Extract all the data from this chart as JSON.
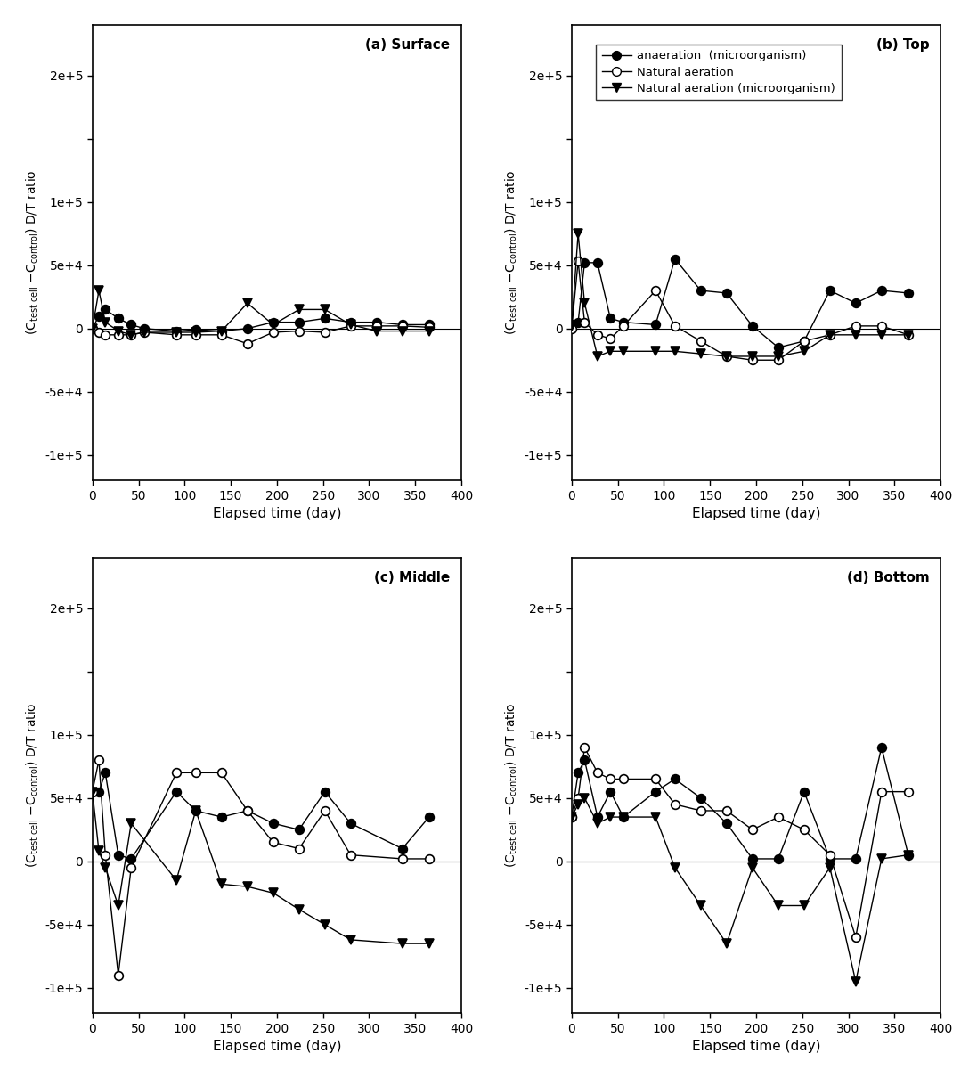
{
  "panels": [
    {
      "label": "(a) Surface",
      "series": [
        {
          "name": "anaeration (microorganism)",
          "x": [
            0,
            7,
            14,
            28,
            42,
            56,
            91,
            112,
            140,
            168,
            196,
            224,
            252,
            280,
            308,
            336,
            365
          ],
          "y": [
            0,
            10000,
            15000,
            8000,
            3000,
            0,
            -2000,
            -1000,
            -2000,
            0,
            5000,
            5000,
            8000,
            5000,
            5000,
            3000,
            3000
          ],
          "marker": "o",
          "fillstyle": "full"
        },
        {
          "name": "Natural aeration",
          "x": [
            0,
            7,
            14,
            28,
            42,
            56,
            91,
            112,
            140,
            168,
            196,
            224,
            252,
            280,
            308,
            336,
            365
          ],
          "y": [
            0,
            -3000,
            -5000,
            -5000,
            -5000,
            -3000,
            -5000,
            -5000,
            -5000,
            -12000,
            -3000,
            -2000,
            -3000,
            2000,
            2000,
            2000,
            1000
          ],
          "marker": "o",
          "fillstyle": "none"
        },
        {
          "name": "Natural aeration (microorganism)",
          "x": [
            0,
            7,
            14,
            28,
            42,
            56,
            91,
            112,
            140,
            168,
            196,
            224,
            252,
            280,
            308,
            336,
            365
          ],
          "y": [
            0,
            30000,
            5000,
            -2000,
            -5000,
            -3000,
            -3000,
            -3000,
            -2000,
            20000,
            3000,
            15000,
            15000,
            3000,
            -2000,
            -2000,
            -2000
          ],
          "marker": "v",
          "fillstyle": "full"
        }
      ],
      "show_legend": false
    },
    {
      "label": "(b) Top",
      "series": [
        {
          "name": "anaeration  (microorganism)",
          "x": [
            0,
            7,
            14,
            28,
            42,
            56,
            91,
            112,
            140,
            168,
            196,
            224,
            252,
            280,
            308,
            336,
            365
          ],
          "y": [
            3000,
            5000,
            52000,
            52000,
            8000,
            5000,
            3000,
            55000,
            30000,
            28000,
            2000,
            -15000,
            -10000,
            30000,
            20000,
            30000,
            28000
          ],
          "marker": "o",
          "fillstyle": "full"
        },
        {
          "name": "Natural aeration",
          "x": [
            0,
            7,
            14,
            28,
            42,
            56,
            91,
            112,
            140,
            168,
            196,
            224,
            252,
            280,
            308,
            336,
            365
          ],
          "y": [
            0,
            53000,
            5000,
            -5000,
            -8000,
            2000,
            30000,
            2000,
            -10000,
            -22000,
            -25000,
            -25000,
            -10000,
            -5000,
            2000,
            2000,
            -5000
          ],
          "marker": "o",
          "fillstyle": "none"
        },
        {
          "name": "Natural aeration (microorganism)",
          "x": [
            0,
            7,
            14,
            28,
            42,
            56,
            91,
            112,
            140,
            168,
            196,
            224,
            252,
            280,
            308,
            336,
            365
          ],
          "y": [
            2000,
            75000,
            20000,
            -22000,
            -18000,
            -18000,
            -18000,
            -18000,
            -20000,
            -22000,
            -22000,
            -22000,
            -18000,
            -5000,
            -5000,
            -5000,
            -5000
          ],
          "marker": "v",
          "fillstyle": "full"
        }
      ],
      "show_legend": true
    },
    {
      "label": "(c) Middle",
      "series": [
        {
          "name": "anaeration (microorganism)",
          "x": [
            0,
            7,
            14,
            28,
            42,
            91,
            112,
            140,
            168,
            196,
            224,
            252,
            280,
            336,
            365
          ],
          "y": [
            55000,
            55000,
            70000,
            5000,
            2000,
            55000,
            40000,
            35000,
            40000,
            30000,
            25000,
            55000,
            30000,
            10000,
            35000
          ],
          "marker": "o",
          "fillstyle": "full"
        },
        {
          "name": "Natural aeration",
          "x": [
            0,
            7,
            14,
            28,
            42,
            91,
            112,
            140,
            168,
            196,
            224,
            252,
            280,
            336,
            365
          ],
          "y": [
            55000,
            80000,
            5000,
            -90000,
            -5000,
            70000,
            70000,
            70000,
            40000,
            15000,
            10000,
            40000,
            5000,
            2000,
            2000
          ],
          "marker": "o",
          "fillstyle": "none"
        },
        {
          "name": "Natural aeration (microorganism)",
          "x": [
            0,
            7,
            14,
            28,
            42,
            91,
            112,
            140,
            168,
            196,
            224,
            252,
            280,
            336,
            365
          ],
          "y": [
            55000,
            8000,
            -5000,
            -35000,
            30000,
            -15000,
            40000,
            -18000,
            -20000,
            -25000,
            -38000,
            -50000,
            -62000,
            -65000,
            -65000
          ],
          "marker": "v",
          "fillstyle": "full"
        }
      ],
      "show_legend": false
    },
    {
      "label": "(d) Bottom",
      "series": [
        {
          "name": "anaeration (microorganism)",
          "x": [
            0,
            7,
            14,
            28,
            42,
            56,
            91,
            112,
            140,
            168,
            196,
            224,
            252,
            280,
            308,
            336,
            365
          ],
          "y": [
            35000,
            70000,
            80000,
            35000,
            55000,
            35000,
            55000,
            65000,
            50000,
            30000,
            2000,
            2000,
            55000,
            2000,
            2000,
            90000,
            5000
          ],
          "marker": "o",
          "fillstyle": "full"
        },
        {
          "name": "Natural aeration",
          "x": [
            0,
            7,
            14,
            28,
            42,
            56,
            91,
            112,
            140,
            168,
            196,
            224,
            252,
            280,
            308,
            336,
            365
          ],
          "y": [
            35000,
            50000,
            90000,
            70000,
            65000,
            65000,
            65000,
            45000,
            40000,
            40000,
            25000,
            35000,
            25000,
            5000,
            -60000,
            55000,
            55000
          ],
          "marker": "o",
          "fillstyle": "none"
        },
        {
          "name": "Natural aeration (microorganism)",
          "x": [
            0,
            7,
            14,
            28,
            42,
            56,
            91,
            112,
            140,
            168,
            196,
            224,
            252,
            280,
            308,
            336,
            365
          ],
          "y": [
            35000,
            45000,
            50000,
            30000,
            35000,
            35000,
            35000,
            -5000,
            -35000,
            -65000,
            -5000,
            -35000,
            -35000,
            -5000,
            -95000,
            2000,
            5000
          ],
          "marker": "v",
          "fillstyle": "full"
        }
      ],
      "show_legend": false
    }
  ],
  "xlabel": "Elapsed time (day)",
  "ylim": [
    -120000,
    240000
  ],
  "xlim": [
    0,
    400
  ],
  "xticks": [
    0,
    50,
    100,
    150,
    200,
    250,
    300,
    350,
    400
  ],
  "ytick_vals": [
    -100000,
    -50000,
    0,
    50000,
    100000,
    150000,
    200000
  ],
  "ytick_labels": [
    "-1e+5",
    "-5e+4",
    "0",
    "5e+4",
    "1e+5",
    "",
    "2e+5"
  ],
  "background_color": "#ffffff",
  "line_color": "black",
  "linewidth": 1.0,
  "markersize": 7
}
